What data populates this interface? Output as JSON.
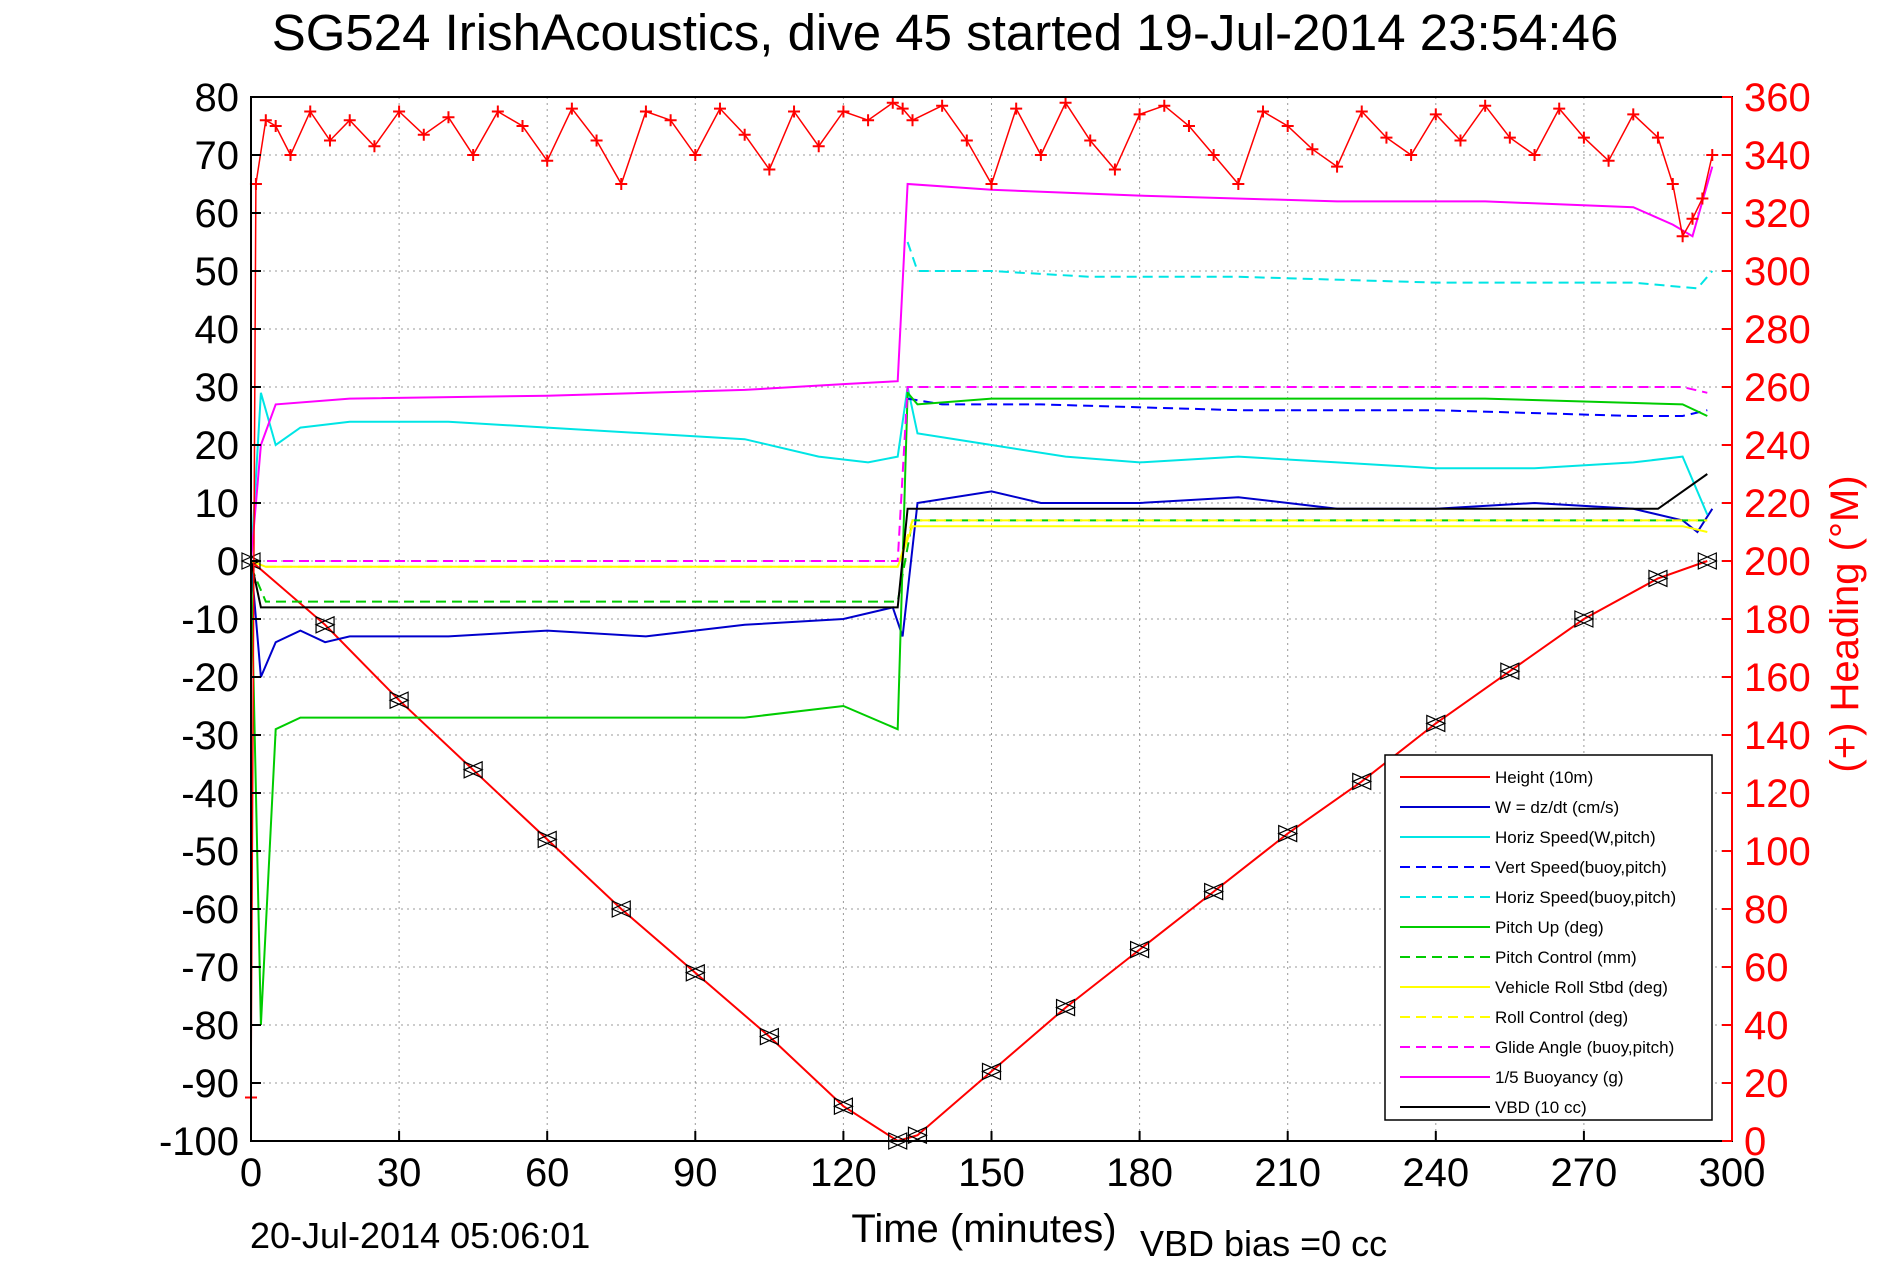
{
  "chart_data": {
    "type": "line",
    "title": "SG524 IrishAcoustics, dive 45 started 19-Jul-2014 23:54:46",
    "xlabel": "Time (minutes)",
    "ylabel": "",
    "ylabel_right": "(+) Heading (°M)",
    "footer_left": "20-Jul-2014 05:06:01",
    "footer_right": "VBD bias =0 cc",
    "xlim": [
      0,
      300
    ],
    "ylim": [
      -100,
      80
    ],
    "ylim_right": [
      0,
      360
    ],
    "x_ticks": [
      "0",
      "30",
      "60",
      "90",
      "120",
      "150",
      "180",
      "210",
      "240",
      "270",
      "300"
    ],
    "y_ticks": [
      "80",
      "70",
      "60",
      "50",
      "40",
      "30",
      "20",
      "10",
      "0",
      "-10",
      "-20",
      "-30",
      "-40",
      "-50",
      "-60",
      "-70",
      "-80",
      "-90",
      "-100"
    ],
    "y_ticks_right": [
      "360",
      "340",
      "320",
      "300",
      "280",
      "260",
      "240",
      "220",
      "200",
      "180",
      "160",
      "140",
      "120",
      "100",
      "80",
      "60",
      "40",
      "20",
      "0"
    ],
    "grid": true,
    "legend_position": "bottom-right",
    "series": [
      {
        "name": "Height (10m)",
        "color": "#ff0000",
        "style": "solid",
        "x": [
          0,
          15,
          30,
          45,
          60,
          75,
          90,
          105,
          120,
          131,
          135,
          150,
          165,
          180,
          195,
          210,
          225,
          240,
          255,
          270,
          285,
          295
        ],
        "y": [
          0,
          -11,
          -24,
          -36,
          -48,
          -60,
          -71,
          -82,
          -94,
          -100,
          -99,
          -88,
          -77,
          -67,
          -57,
          -47,
          -38,
          -28,
          -19,
          -10,
          -3,
          0
        ]
      },
      {
        "name": "W = dz/dt (cm/s)",
        "color": "#0000cc",
        "style": "solid",
        "x": [
          0,
          2,
          5,
          10,
          15,
          20,
          30,
          40,
          60,
          80,
          100,
          120,
          130,
          132,
          135,
          150,
          160,
          180,
          200,
          220,
          240,
          260,
          280,
          290,
          293,
          296
        ],
        "y": [
          0,
          -20,
          -14,
          -12,
          -14,
          -13,
          -13,
          -13,
          -12,
          -13,
          -11,
          -10,
          -8,
          -13,
          10,
          12,
          10,
          10,
          11,
          9,
          9,
          10,
          9,
          7,
          5,
          9
        ]
      },
      {
        "name": "Horiz Speed(W,pitch)",
        "color": "#00e5e5",
        "style": "solid",
        "x": [
          0,
          2,
          5,
          10,
          20,
          40,
          60,
          80,
          100,
          115,
          125,
          131,
          133,
          135,
          150,
          165,
          180,
          200,
          220,
          240,
          260,
          280,
          290,
          295
        ],
        "y": [
          0,
          29,
          20,
          23,
          24,
          24,
          23,
          22,
          21,
          18,
          17,
          18,
          30,
          22,
          20,
          18,
          17,
          18,
          17,
          16,
          16,
          17,
          18,
          8
        ]
      },
      {
        "name": "Vert Speed(buoy,pitch)",
        "color": "#0000ff",
        "style": "dashed",
        "x": [
          133,
          140,
          160,
          200,
          240,
          280,
          290,
          295
        ],
        "y": [
          28,
          27,
          27,
          26,
          26,
          25,
          25,
          26
        ]
      },
      {
        "name": "Horiz Speed(buoy,pitch)",
        "color": "#00e5e5",
        "style": "dashed",
        "x": [
          133,
          135,
          150,
          170,
          200,
          240,
          280,
          293,
          296
        ],
        "y": [
          55,
          50,
          50,
          49,
          49,
          48,
          48,
          47,
          50
        ]
      },
      {
        "name": "Pitch Up (deg)",
        "color": "#00cc00",
        "style": "solid",
        "x": [
          0,
          2,
          5,
          10,
          20,
          40,
          60,
          80,
          100,
          120,
          131,
          133,
          135,
          150,
          200,
          250,
          290,
          295
        ],
        "y": [
          0,
          -80,
          -29,
          -27,
          -27,
          -27,
          -27,
          -27,
          -27,
          -25,
          -29,
          29,
          27,
          28,
          28,
          28,
          27,
          25
        ]
      },
      {
        "name": "Pitch Control (mm)",
        "color": "#00cc00",
        "style": "dashed",
        "x": [
          0,
          3,
          50,
          100,
          131,
          134,
          150,
          200,
          250,
          290,
          295
        ],
        "y": [
          -1,
          -7,
          -7,
          -7,
          -7,
          7,
          7,
          7,
          7,
          7,
          7
        ]
      },
      {
        "name": "Vehicle Roll Stbd (deg)",
        "color": "#ffff00",
        "style": "solid",
        "x": [
          0,
          3,
          50,
          100,
          131,
          134,
          200,
          250,
          290,
          295
        ],
        "y": [
          0,
          -1,
          -1,
          -1,
          -1,
          6,
          6,
          6,
          6,
          5
        ]
      },
      {
        "name": "Roll Control (deg)",
        "color": "#ffff00",
        "style": "dashed",
        "x": [
          0,
          3,
          50,
          100,
          131,
          134,
          200,
          250,
          290,
          295
        ],
        "y": [
          0,
          -1,
          -1,
          -1,
          -1,
          7,
          7,
          7,
          7,
          7
        ]
      },
      {
        "name": "Glide Angle (buoy,pitch)",
        "color": "#ff00ff",
        "style": "dashed",
        "x": [
          0,
          131,
          133,
          150,
          200,
          250,
          290,
          295
        ],
        "y": [
          0,
          0,
          30,
          30,
          30,
          30,
          30,
          29
        ]
      },
      {
        "name": "1/5 Buoyancy (g)",
        "color": "#ff00ff",
        "style": "solid",
        "x": [
          0,
          2,
          5,
          20,
          60,
          100,
          120,
          131,
          133,
          150,
          180,
          220,
          250,
          280,
          288,
          292,
          296
        ],
        "y": [
          0,
          20,
          27,
          28,
          28.5,
          29.5,
          30.5,
          31,
          65,
          64,
          63,
          62,
          62,
          61,
          58,
          56,
          68
        ]
      },
      {
        "name": "VBD (10 cc)",
        "color": "#000000",
        "style": "solid",
        "x": [
          0,
          2,
          30,
          60,
          100,
          131,
          133,
          150,
          200,
          250,
          285,
          295
        ],
        "y": [
          0,
          -8,
          -8,
          -8,
          -8,
          -8,
          9,
          9,
          9,
          9,
          9,
          15
        ]
      }
    ],
    "heading_series": {
      "name": "Heading",
      "color": "#ff0000",
      "marker": "+",
      "axis": "right",
      "x": [
        0,
        1,
        3,
        5,
        8,
        12,
        16,
        20,
        25,
        30,
        35,
        40,
        45,
        50,
        55,
        60,
        65,
        70,
        75,
        80,
        85,
        90,
        95,
        100,
        105,
        110,
        115,
        120,
        125,
        130,
        132,
        134,
        140,
        145,
        150,
        155,
        160,
        165,
        170,
        175,
        180,
        185,
        190,
        195,
        200,
        205,
        210,
        215,
        220,
        225,
        230,
        235,
        240,
        245,
        250,
        255,
        260,
        265,
        270,
        275,
        280,
        285,
        288,
        290,
        292,
        294,
        296
      ],
      "y": [
        15,
        330,
        352,
        350,
        340,
        355,
        345,
        352,
        343,
        355,
        347,
        353,
        340,
        355,
        350,
        338,
        356,
        345,
        330,
        355,
        352,
        340,
        356,
        347,
        335,
        355,
        343,
        355,
        352,
        358,
        356,
        352,
        357,
        345,
        330,
        356,
        340,
        358,
        345,
        335,
        354,
        357,
        350,
        340,
        330,
        355,
        350,
        342,
        336,
        355,
        346,
        340,
        354,
        345,
        357,
        346,
        340,
        356,
        346,
        338,
        354,
        346,
        330,
        312,
        318,
        325,
        340
      ]
    }
  }
}
